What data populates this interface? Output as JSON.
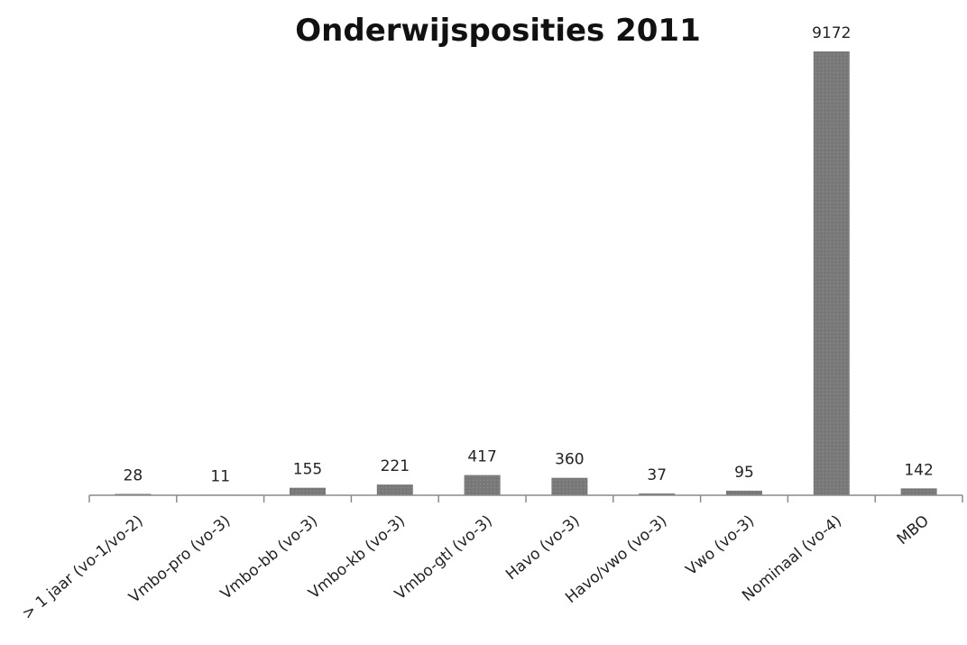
{
  "chart_data": {
    "type": "bar",
    "title": "Onderwijsposities 2011",
    "xlabel": "",
    "ylabel": "",
    "categories": [
      "> 1 jaar (vo-1/vo-2)",
      "Vmbo-pro (vo-3)",
      "Vmbo-bb (vo-3)",
      "Vmbo-kb (vo-3)",
      "Vmbo-gtl (vo-3)",
      "Havo (vo-3)",
      "Havo/vwo (vo-3)",
      "Vwo (vo-3)",
      "Nominaal (vo-4)",
      "MBO"
    ],
    "values": [
      28,
      11,
      155,
      221,
      417,
      360,
      37,
      95,
      9172,
      142
    ],
    "ylim": [
      0,
      9172
    ],
    "grid": false,
    "legend": "none",
    "data_labels": true,
    "bar_color": "#7a7a7a"
  }
}
